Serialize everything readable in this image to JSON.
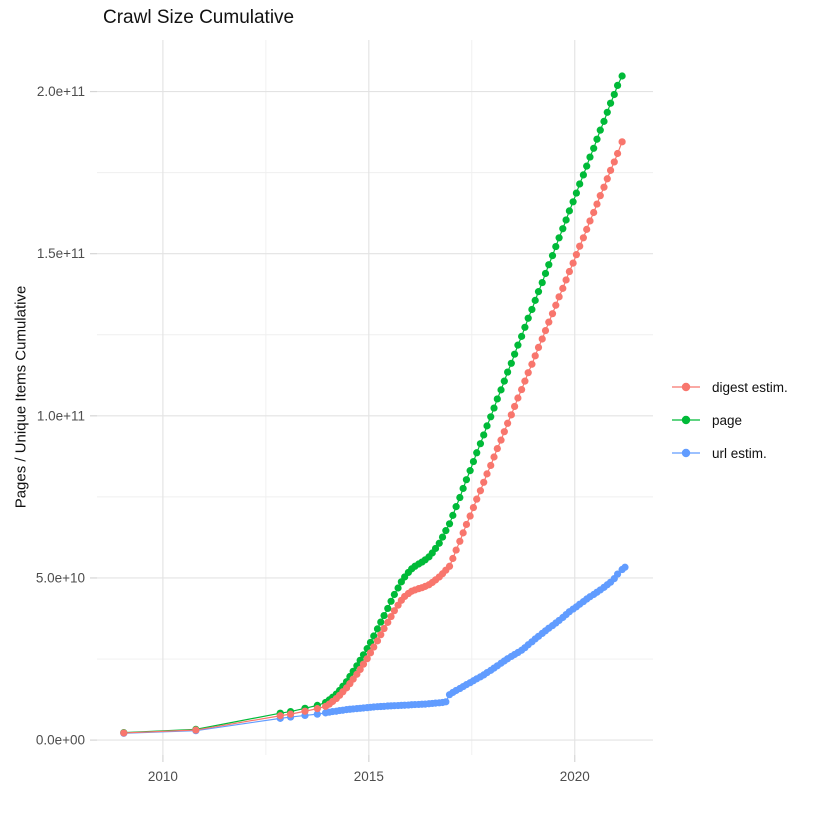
{
  "title": "Crawl Size Cumulative",
  "chart_data": {
    "type": "scatter",
    "title": "Crawl Size Cumulative",
    "xlabel": "",
    "ylabel": "Pages / Unique Items Cumulative",
    "legend_position": "right",
    "grid": true,
    "background": "#ffffff",
    "grid_major_color": "#e3e3e3",
    "grid_minor_color": "#efefef",
    "tick_mark_color": "#d5d5d5",
    "tick_text_color": "#4d4d4d",
    "x_domain": [
      2008.4,
      2021.9
    ],
    "y_domain_e9": [
      -4.6,
      215.9
    ],
    "x_tick_values": [
      2010,
      2015,
      2020
    ],
    "x_tick_labels": [
      "2010",
      "2015",
      "2020"
    ],
    "x_minor_values": [
      2012.5,
      2017.5
    ],
    "y_tick_values_e9": [
      0,
      50,
      100,
      150,
      200
    ],
    "y_tick_labels": [
      "0.0e+00",
      "5.0e+10",
      "1.0e+11",
      "1.5e+11",
      "2.0e+11"
    ],
    "y_minor_values_e9": [
      25,
      75,
      125,
      175
    ],
    "point_units": "[year, pages_in_billions(1e9)]",
    "series": [
      {
        "name": "digest estim.",
        "color": "#F8766D",
        "points": [
          [
            2009.05,
            2.2
          ],
          [
            2010.8,
            3.1
          ],
          [
            2012.85,
            7.5
          ],
          [
            2013.1,
            8.0
          ],
          [
            2013.45,
            8.9
          ],
          [
            2013.75,
            9.7
          ],
          [
            2013.95,
            10.4
          ],
          [
            2014.04,
            11.1
          ],
          [
            2014.12,
            11.9
          ],
          [
            2014.21,
            12.8
          ],
          [
            2014.29,
            13.8
          ],
          [
            2014.37,
            14.9
          ],
          [
            2014.46,
            16.1
          ],
          [
            2014.54,
            17.4
          ],
          [
            2014.62,
            18.8
          ],
          [
            2014.71,
            20.3
          ],
          [
            2014.79,
            21.8
          ],
          [
            2014.87,
            23.4
          ],
          [
            2014.96,
            25.1
          ],
          [
            2015.04,
            26.9
          ],
          [
            2015.12,
            28.7
          ],
          [
            2015.21,
            30.6
          ],
          [
            2015.29,
            32.5
          ],
          [
            2015.37,
            34.4
          ],
          [
            2015.46,
            36.3
          ],
          [
            2015.54,
            38.1
          ],
          [
            2015.62,
            39.9
          ],
          [
            2015.71,
            41.6
          ],
          [
            2015.79,
            43.1
          ],
          [
            2015.87,
            44.3
          ],
          [
            2015.96,
            45.2
          ],
          [
            2016.04,
            45.9
          ],
          [
            2016.12,
            46.3
          ],
          [
            2016.21,
            46.7
          ],
          [
            2016.29,
            47.0
          ],
          [
            2016.37,
            47.4
          ],
          [
            2016.46,
            47.9
          ],
          [
            2016.54,
            48.6
          ],
          [
            2016.62,
            49.4
          ],
          [
            2016.71,
            50.3
          ],
          [
            2016.79,
            51.3
          ],
          [
            2016.87,
            52.4
          ],
          [
            2016.96,
            53.6
          ],
          [
            2017.04,
            56.0
          ],
          [
            2017.12,
            58.6
          ],
          [
            2017.21,
            61.3
          ],
          [
            2017.29,
            63.9
          ],
          [
            2017.37,
            66.5
          ],
          [
            2017.46,
            69.1
          ],
          [
            2017.54,
            71.7
          ],
          [
            2017.62,
            74.3
          ],
          [
            2017.71,
            76.9
          ],
          [
            2017.79,
            79.5
          ],
          [
            2017.87,
            82.1
          ],
          [
            2017.96,
            84.7
          ],
          [
            2018.04,
            87.3
          ],
          [
            2018.12,
            89.9
          ],
          [
            2018.21,
            92.5
          ],
          [
            2018.29,
            95.1
          ],
          [
            2018.37,
            97.7
          ],
          [
            2018.46,
            100.3
          ],
          [
            2018.54,
            102.9
          ],
          [
            2018.62,
            105.5
          ],
          [
            2018.71,
            108.1
          ],
          [
            2018.79,
            110.7
          ],
          [
            2018.87,
            113.3
          ],
          [
            2018.96,
            115.9
          ],
          [
            2019.04,
            118.5
          ],
          [
            2019.12,
            121.1
          ],
          [
            2019.21,
            123.7
          ],
          [
            2019.29,
            126.3
          ],
          [
            2019.37,
            128.9
          ],
          [
            2019.46,
            131.5
          ],
          [
            2019.54,
            134.1
          ],
          [
            2019.62,
            136.7
          ],
          [
            2019.71,
            139.3
          ],
          [
            2019.79,
            141.9
          ],
          [
            2019.87,
            144.5
          ],
          [
            2019.96,
            147.1
          ],
          [
            2020.04,
            149.7
          ],
          [
            2020.12,
            152.3
          ],
          [
            2020.21,
            154.9
          ],
          [
            2020.29,
            157.5
          ],
          [
            2020.37,
            160.1
          ],
          [
            2020.46,
            162.7
          ],
          [
            2020.54,
            165.3
          ],
          [
            2020.62,
            167.9
          ],
          [
            2020.71,
            170.5
          ],
          [
            2020.79,
            173.1
          ],
          [
            2020.87,
            175.7
          ],
          [
            2020.96,
            178.3
          ],
          [
            2021.04,
            180.9
          ],
          [
            2021.15,
            184.5
          ]
        ]
      },
      {
        "name": "page",
        "color": "#00BA38",
        "points": [
          [
            2009.05,
            2.3
          ],
          [
            2010.8,
            3.3
          ],
          [
            2012.85,
            8.3
          ],
          [
            2013.1,
            8.8
          ],
          [
            2013.45,
            9.8
          ],
          [
            2013.75,
            10.7
          ],
          [
            2013.95,
            11.6
          ],
          [
            2014.04,
            12.4
          ],
          [
            2014.12,
            13.2
          ],
          [
            2014.21,
            14.2
          ],
          [
            2014.29,
            15.3
          ],
          [
            2014.37,
            16.6
          ],
          [
            2014.46,
            18.0
          ],
          [
            2014.54,
            19.6
          ],
          [
            2014.62,
            21.2
          ],
          [
            2014.71,
            22.9
          ],
          [
            2014.79,
            24.6
          ],
          [
            2014.87,
            26.3
          ],
          [
            2014.96,
            28.2
          ],
          [
            2015.04,
            30.1
          ],
          [
            2015.12,
            32.1
          ],
          [
            2015.21,
            34.3
          ],
          [
            2015.29,
            36.4
          ],
          [
            2015.37,
            38.4
          ],
          [
            2015.46,
            40.6
          ],
          [
            2015.54,
            42.8
          ],
          [
            2015.62,
            44.9
          ],
          [
            2015.71,
            46.9
          ],
          [
            2015.79,
            48.8
          ],
          [
            2015.87,
            50.3
          ],
          [
            2015.96,
            51.7
          ],
          [
            2016.04,
            52.8
          ],
          [
            2016.12,
            53.6
          ],
          [
            2016.21,
            54.3
          ],
          [
            2016.29,
            54.9
          ],
          [
            2016.37,
            55.6
          ],
          [
            2016.46,
            56.5
          ],
          [
            2016.54,
            57.7
          ],
          [
            2016.62,
            59.1
          ],
          [
            2016.71,
            60.7
          ],
          [
            2016.79,
            62.6
          ],
          [
            2016.87,
            64.6
          ],
          [
            2016.96,
            66.7
          ],
          [
            2017.04,
            69.3
          ],
          [
            2017.12,
            72.0
          ],
          [
            2017.21,
            74.8
          ],
          [
            2017.29,
            77.6
          ],
          [
            2017.37,
            80.3
          ],
          [
            2017.46,
            83.1
          ],
          [
            2017.54,
            85.9
          ],
          [
            2017.62,
            88.6
          ],
          [
            2017.71,
            91.4
          ],
          [
            2017.79,
            94.1
          ],
          [
            2017.87,
            96.9
          ],
          [
            2017.96,
            99.7
          ],
          [
            2018.04,
            102.4
          ],
          [
            2018.12,
            105.2
          ],
          [
            2018.21,
            108.0
          ],
          [
            2018.29,
            110.7
          ],
          [
            2018.37,
            113.5
          ],
          [
            2018.46,
            116.2
          ],
          [
            2018.54,
            119.0
          ],
          [
            2018.62,
            121.8
          ],
          [
            2018.71,
            124.5
          ],
          [
            2018.79,
            127.3
          ],
          [
            2018.87,
            130.1
          ],
          [
            2018.96,
            132.8
          ],
          [
            2019.04,
            135.6
          ],
          [
            2019.12,
            138.3
          ],
          [
            2019.21,
            141.1
          ],
          [
            2019.29,
            143.9
          ],
          [
            2019.37,
            146.6
          ],
          [
            2019.46,
            149.4
          ],
          [
            2019.54,
            152.2
          ],
          [
            2019.62,
            154.9
          ],
          [
            2019.71,
            157.7
          ],
          [
            2019.79,
            160.4
          ],
          [
            2019.87,
            163.2
          ],
          [
            2019.96,
            166.0
          ],
          [
            2020.04,
            168.7
          ],
          [
            2020.12,
            171.5
          ],
          [
            2020.21,
            174.3
          ],
          [
            2020.29,
            177.0
          ],
          [
            2020.37,
            179.8
          ],
          [
            2020.46,
            182.5
          ],
          [
            2020.54,
            185.3
          ],
          [
            2020.62,
            188.1
          ],
          [
            2020.71,
            190.8
          ],
          [
            2020.79,
            193.6
          ],
          [
            2020.87,
            196.4
          ],
          [
            2020.96,
            199.1
          ],
          [
            2021.04,
            201.9
          ],
          [
            2021.15,
            204.8
          ]
        ]
      },
      {
        "name": "url estim.",
        "color": "#619CFF",
        "points": [
          [
            2009.05,
            2.1
          ],
          [
            2010.8,
            2.9
          ],
          [
            2012.85,
            6.7
          ],
          [
            2013.1,
            7.1
          ],
          [
            2013.45,
            7.6
          ],
          [
            2013.75,
            8.0
          ],
          [
            2013.95,
            8.4
          ],
          [
            2014.04,
            8.6
          ],
          [
            2014.12,
            8.8
          ],
          [
            2014.21,
            8.9
          ],
          [
            2014.29,
            9.1
          ],
          [
            2014.37,
            9.2
          ],
          [
            2014.46,
            9.4
          ],
          [
            2014.54,
            9.5
          ],
          [
            2014.62,
            9.6
          ],
          [
            2014.71,
            9.7
          ],
          [
            2014.79,
            9.8
          ],
          [
            2014.87,
            9.9
          ],
          [
            2014.96,
            10.0
          ],
          [
            2015.04,
            10.1
          ],
          [
            2015.12,
            10.2
          ],
          [
            2015.21,
            10.3
          ],
          [
            2015.29,
            10.35
          ],
          [
            2015.37,
            10.4
          ],
          [
            2015.46,
            10.5
          ],
          [
            2015.54,
            10.55
          ],
          [
            2015.62,
            10.6
          ],
          [
            2015.71,
            10.65
          ],
          [
            2015.79,
            10.7
          ],
          [
            2015.87,
            10.75
          ],
          [
            2015.96,
            10.8
          ],
          [
            2016.04,
            10.9
          ],
          [
            2016.12,
            10.95
          ],
          [
            2016.21,
            11.0
          ],
          [
            2016.29,
            11.05
          ],
          [
            2016.37,
            11.1
          ],
          [
            2016.46,
            11.2
          ],
          [
            2016.54,
            11.3
          ],
          [
            2016.62,
            11.4
          ],
          [
            2016.71,
            11.5
          ],
          [
            2016.79,
            11.6
          ],
          [
            2016.87,
            11.8
          ],
          [
            2016.96,
            14.0
          ],
          [
            2017.04,
            14.7
          ],
          [
            2017.12,
            15.3
          ],
          [
            2017.21,
            15.9
          ],
          [
            2017.29,
            16.5
          ],
          [
            2017.37,
            17.1
          ],
          [
            2017.46,
            17.7
          ],
          [
            2017.54,
            18.3
          ],
          [
            2017.62,
            18.9
          ],
          [
            2017.71,
            19.5
          ],
          [
            2017.79,
            20.1
          ],
          [
            2017.87,
            20.8
          ],
          [
            2017.96,
            21.5
          ],
          [
            2018.04,
            22.2
          ],
          [
            2018.12,
            22.9
          ],
          [
            2018.21,
            23.7
          ],
          [
            2018.29,
            24.4
          ],
          [
            2018.37,
            25.1
          ],
          [
            2018.46,
            25.8
          ],
          [
            2018.54,
            26.4
          ],
          [
            2018.62,
            27.0
          ],
          [
            2018.71,
            27.7
          ],
          [
            2018.79,
            28.5
          ],
          [
            2018.87,
            29.4
          ],
          [
            2018.96,
            30.3
          ],
          [
            2019.04,
            31.2
          ],
          [
            2019.12,
            32.0
          ],
          [
            2019.21,
            32.9
          ],
          [
            2019.29,
            33.7
          ],
          [
            2019.37,
            34.5
          ],
          [
            2019.46,
            35.3
          ],
          [
            2019.54,
            36.1
          ],
          [
            2019.62,
            36.9
          ],
          [
            2019.71,
            37.8
          ],
          [
            2019.79,
            38.7
          ],
          [
            2019.87,
            39.6
          ],
          [
            2019.96,
            40.4
          ],
          [
            2020.04,
            41.1
          ],
          [
            2020.12,
            41.9
          ],
          [
            2020.21,
            42.7
          ],
          [
            2020.29,
            43.5
          ],
          [
            2020.37,
            44.2
          ],
          [
            2020.46,
            44.9
          ],
          [
            2020.54,
            45.6
          ],
          [
            2020.62,
            46.3
          ],
          [
            2020.71,
            47.1
          ],
          [
            2020.79,
            47.9
          ],
          [
            2020.87,
            48.7
          ],
          [
            2020.96,
            49.8
          ],
          [
            2021.04,
            51.2
          ],
          [
            2021.15,
            52.6
          ],
          [
            2021.22,
            53.3
          ]
        ]
      }
    ]
  }
}
